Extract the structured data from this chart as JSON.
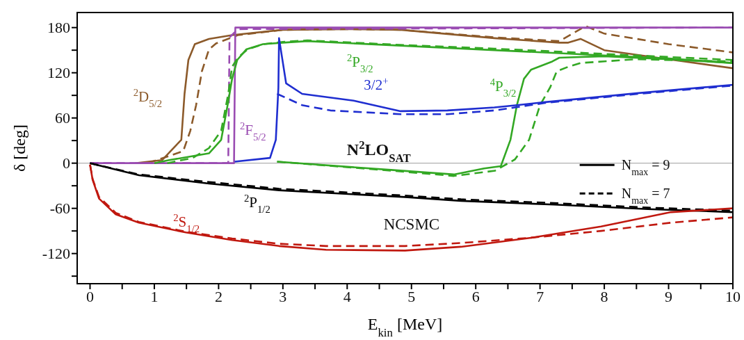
{
  "chart_data": {
    "type": "line",
    "xlabel": "E$_{kin}$ [MeV]",
    "ylabel": "δ  [deg]",
    "xlim": [
      -0.2,
      10
    ],
    "xticks": [
      0,
      {
        "value": 0.5,
        "label": null
      },
      1,
      {
        "value": 1.5,
        "label": null
      },
      2,
      {
        "value": 2.5,
        "label": null
      },
      3,
      {
        "value": 3.5,
        "label": null
      },
      4,
      {
        "value": 4.5,
        "label": null
      },
      5,
      {
        "value": 5.5,
        "label": null
      },
      6,
      {
        "value": 6.5,
        "label": null
      },
      7,
      {
        "value": 7.5,
        "label": null
      },
      8,
      {
        "value": 8.5,
        "label": null
      },
      9,
      {
        "value": 9.5,
        "label": null
      },
      10
    ],
    "ylim": [
      -160,
      200
    ],
    "yticks": [
      {
        "value": -150,
        "label": null
      },
      -120,
      {
        "value": -90,
        "label": null
      },
      -60,
      {
        "value": -30,
        "label": null
      },
      0,
      {
        "value": 30,
        "label": null
      },
      60,
      {
        "value": 90,
        "label": null
      },
      120,
      {
        "value": 150,
        "label": null
      },
      180
    ],
    "marker": "none",
    "ref_lines": [
      {
        "axis": "y",
        "value": 0,
        "label": null,
        "color": "#b0b0b0"
      }
    ],
    "series": [
      {
        "name": "$^{2}$D$_{5/2}$",
        "color": "#8c5a2a",
        "line_style": "solid",
        "x": [
          0.7,
          1.12,
          1.42,
          1.47,
          1.53,
          1.63,
          1.85,
          2.21,
          3,
          4,
          4.83,
          6.29,
          7.3,
          7.44,
          7.63,
          8,
          9,
          10
        ],
        "values": [
          0,
          4,
          31,
          92,
          137,
          158,
          165,
          170,
          177,
          178,
          177,
          166,
          160,
          160,
          165,
          150,
          138,
          126
        ]
      },
      {
        "color": "#8c5a2a",
        "line_style": "dashed",
        "x": [
          0.9,
          1.45,
          1.56,
          1.65,
          1.74,
          1.85,
          1.96,
          2.3,
          3,
          4,
          4.83,
          6.29,
          7.3,
          7.71,
          8,
          9,
          10
        ],
        "values": [
          0,
          16,
          43,
          77,
          122,
          151,
          159,
          170,
          177,
          178,
          177,
          167,
          162,
          182,
          172,
          158,
          147
        ]
      },
      {
        "name": "$^{2}$F$_{5/2}$",
        "color": "#9a4cb2",
        "line_style": "solid",
        "x": [
          0,
          2.24,
          2.26,
          10
        ],
        "values": [
          0,
          0,
          180,
          180
        ]
      },
      {
        "color": "#9a4cb2",
        "line_style": "dashed",
        "x": [
          0,
          2.15,
          2.17,
          2.3,
          10
        ],
        "values": [
          0,
          0,
          167,
          178,
          180
        ]
      },
      {
        "name": "$^{2}$P$_{3/2}$",
        "color": "#33a824",
        "line_style": "solid",
        "x": [
          1.0,
          1.23,
          1.85,
          2.04,
          2.14,
          2.21,
          2.29,
          2.43,
          2.69,
          3,
          3.38,
          4.83,
          6.29,
          7.3,
          8,
          9,
          10
        ],
        "values": [
          0,
          4,
          13,
          31,
          77,
          112,
          137,
          151,
          158,
          160,
          162,
          156,
          150,
          146,
          143,
          139,
          133
        ]
      },
      {
        "color": "#33a824",
        "line_style": "dashed",
        "x": [
          1.2,
          1.6,
          1.85,
          2.04,
          2.15,
          2.21,
          2.3,
          2.45,
          2.7,
          3,
          3.38,
          4.83,
          6.29,
          7.3,
          8,
          9,
          10
        ],
        "values": [
          0,
          7,
          20,
          43,
          92,
          128,
          140,
          151,
          158,
          161,
          163,
          157,
          152,
          148,
          145,
          141,
          137
        ]
      },
      {
        "name": "$^{4}$P$_{3/2}$",
        "color": "#33a824",
        "line_style": "solid",
        "x": [
          2.91,
          4.68,
          5.66,
          6.13,
          6.39,
          6.54,
          6.64,
          6.75,
          6.86,
          7.19,
          7.3,
          8,
          9,
          10
        ],
        "values": [
          2,
          -9,
          -15,
          -7,
          -4,
          31,
          77,
          112,
          124,
          135,
          140,
          142,
          138,
          133
        ]
      },
      {
        "color": "#33a824",
        "line_style": "dashed",
        "x": [
          2.91,
          4.68,
          5.66,
          6.3,
          6.61,
          6.83,
          7.0,
          7.16,
          7.26,
          7.44,
          7.63,
          8.5,
          10
        ],
        "values": [
          2,
          -10,
          -17,
          -10,
          5,
          31,
          77,
          101,
          122,
          128,
          133,
          138,
          135
        ]
      },
      {
        "name": "3/2$^{+}$",
        "color": "#1f2ed0",
        "line_style": "solid",
        "x": [
          2.25,
          2.8,
          2.89,
          2.93,
          2.94,
          3.05,
          3.3,
          4.1,
          4.83,
          5.56,
          6.29,
          6.64,
          7.08,
          8.53,
          10
        ],
        "values": [
          2,
          7,
          31,
          100,
          166,
          106,
          92,
          83,
          69,
          70,
          74,
          77,
          81,
          93,
          104
        ]
      },
      {
        "color": "#1f2ed0",
        "line_style": "dashed",
        "x": [
          2.91,
          3.3,
          3.74,
          4.83,
          5.56,
          6.29,
          7.08,
          8.53,
          10
        ],
        "values": [
          92,
          77,
          70,
          65,
          65,
          70,
          80,
          92,
          103
        ]
      },
      {
        "name": "$^{2}$P$_{1/2}$",
        "color": "#000000",
        "line_style": "solid",
        "x": [
          0,
          0.76,
          1.85,
          2.94,
          4.9,
          5.77,
          7.22,
          8.68,
          10
        ],
        "values": [
          0,
          -16,
          -27,
          -36,
          -45,
          -50,
          -55,
          -61,
          -65
        ]
      },
      {
        "color": "#000000",
        "line_style": "dashed",
        "x": [
          0,
          0.76,
          1.85,
          2.94,
          4.9,
          5.77,
          7.22,
          8.68,
          10
        ],
        "values": [
          0,
          -15,
          -25,
          -34,
          -43,
          -48,
          -53,
          -59,
          -63
        ]
      },
      {
        "name": "$^{2}$S$_{1/2}$",
        "color": "#c0180f",
        "line_style": "solid",
        "x": [
          0,
          0.04,
          0.14,
          0.4,
          0.76,
          1.49,
          2.21,
          2.94,
          3.67,
          4.9,
          5.77,
          6.86,
          7.95,
          9.04,
          10
        ],
        "values": [
          -2,
          -22,
          -47,
          -68,
          -79,
          -92,
          -102,
          -110,
          -115,
          -116,
          -111,
          -99,
          -84,
          -65,
          -60
        ]
      },
      {
        "color": "#c0180f",
        "line_style": "dashed",
        "x": [
          0,
          0.04,
          0.14,
          0.4,
          0.76,
          1.49,
          2.21,
          2.94,
          3.67,
          4.9,
          5.77,
          6.86,
          7.95,
          9.04,
          10
        ],
        "values": [
          -2,
          -21,
          -45,
          -66,
          -78,
          -91,
          -100,
          -107,
          -110,
          -110,
          -106,
          -99,
          -90,
          -79,
          -72
        ]
      }
    ],
    "annotations": [
      "N$^{2}$LO$_{SAT}$",
      "NCSMC",
      "N$_{max}$ = 9",
      "N$_{max}$ = 7"
    ]
  }
}
